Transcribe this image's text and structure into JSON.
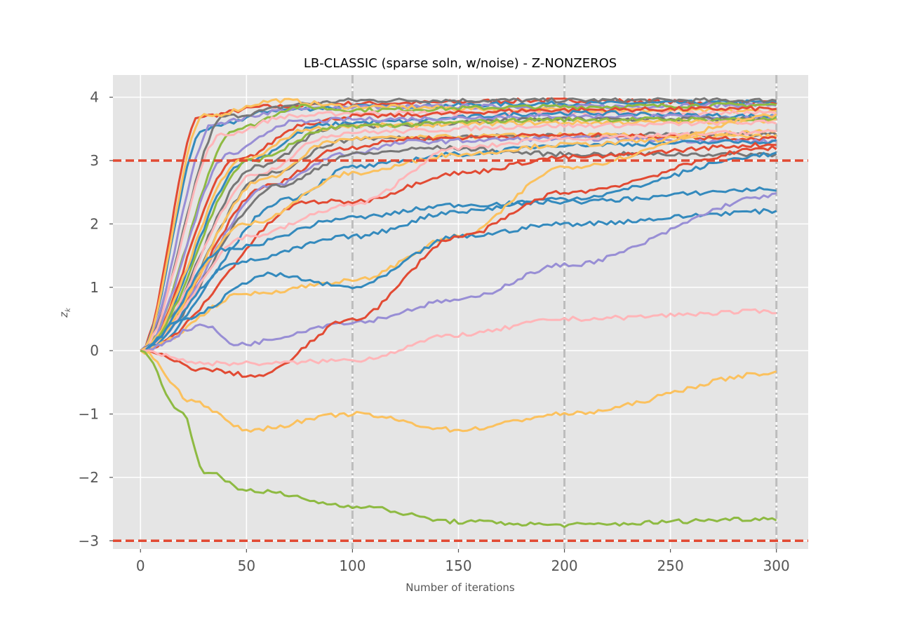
{
  "chart_data": {
    "type": "line",
    "title": "LB-CLASSIC (sparse soln, w/noise) - Z-NONZEROS",
    "xlabel": "Number of iterations",
    "ylabel": "z_k",
    "xlim": [
      -13,
      315
    ],
    "ylim": [
      -3.13,
      4.35
    ],
    "xticks": [
      0,
      50,
      100,
      150,
      200,
      250,
      300
    ],
    "xtick_labels": [
      "0",
      "50",
      "100",
      "150",
      "200",
      "250",
      "300"
    ],
    "yticks": [
      -3,
      -2,
      -1,
      0,
      1,
      2,
      3,
      4
    ],
    "ytick_labels": [
      "−3",
      "−2",
      "−1",
      "0",
      "1",
      "2",
      "3",
      "4"
    ],
    "grid": true,
    "threshold_lines": [
      3,
      -3
    ],
    "vertical_markers": [
      100,
      200,
      300
    ],
    "colors": {
      "background": "#e5e5e5",
      "grid": "#ffffff",
      "threshold": "#e24a33",
      "marker": "#bdbdbd",
      "palette": [
        "#e24a33",
        "#348abd",
        "#988ed5",
        "#777777",
        "#fbc15e",
        "#8eba42",
        "#ffb5b8"
      ]
    },
    "series": [
      {
        "color": "#e24a33",
        "x": [
          0,
          28,
          60,
          100,
          200,
          300
        ],
        "y": [
          0,
          3.7,
          3.85,
          3.9,
          3.95,
          3.9
        ]
      },
      {
        "color": "#348abd",
        "x": [
          0,
          30,
          65,
          100,
          200,
          300
        ],
        "y": [
          0,
          3.5,
          3.8,
          3.85,
          3.9,
          3.92
        ]
      },
      {
        "color": "#988ed5",
        "x": [
          0,
          35,
          70,
          100,
          200,
          300
        ],
        "y": [
          0,
          3.6,
          3.8,
          3.85,
          3.85,
          3.88
        ]
      },
      {
        "color": "#777777",
        "x": [
          0,
          40,
          80,
          100,
          200,
          300
        ],
        "y": [
          0,
          3.7,
          3.9,
          3.95,
          3.95,
          3.95
        ]
      },
      {
        "color": "#fbc15e",
        "x": [
          0,
          30,
          65,
          100,
          200,
          300
        ],
        "y": [
          0,
          3.7,
          3.95,
          3.85,
          3.8,
          3.78
        ]
      },
      {
        "color": "#8eba42",
        "x": [
          0,
          45,
          75,
          100,
          200,
          300
        ],
        "y": [
          0,
          3.5,
          3.85,
          3.8,
          3.85,
          3.88
        ]
      },
      {
        "color": "#ffb5b8",
        "x": [
          0,
          38,
          70,
          100,
          200,
          300
        ],
        "y": [
          0,
          3.4,
          3.7,
          3.75,
          3.75,
          3.75
        ]
      },
      {
        "color": "#e24a33",
        "x": [
          0,
          45,
          80,
          100,
          200,
          300
        ],
        "y": [
          0,
          3.0,
          3.6,
          3.7,
          3.8,
          3.82
        ]
      },
      {
        "color": "#348abd",
        "x": [
          0,
          50,
          85,
          100,
          200,
          300
        ],
        "y": [
          0,
          3.0,
          3.55,
          3.6,
          3.75,
          3.7
        ]
      },
      {
        "color": "#988ed5",
        "x": [
          0,
          42,
          70,
          100,
          200,
          300
        ],
        "y": [
          0,
          3.1,
          3.6,
          3.65,
          3.7,
          3.68
        ]
      },
      {
        "color": "#777777",
        "x": [
          0,
          55,
          90,
          100,
          200,
          300
        ],
        "y": [
          0,
          2.9,
          3.5,
          3.55,
          3.65,
          3.66
        ]
      },
      {
        "color": "#fbc15e",
        "x": [
          0,
          48,
          80,
          100,
          200,
          300
        ],
        "y": [
          0,
          3.0,
          3.5,
          3.55,
          3.6,
          3.62
        ]
      },
      {
        "color": "#8eba42",
        "x": [
          0,
          52,
          90,
          100,
          200,
          300
        ],
        "y": [
          0,
          3.0,
          3.5,
          3.55,
          3.65,
          3.65
        ]
      },
      {
        "color": "#ffb5b8",
        "x": [
          0,
          55,
          90,
          100,
          200,
          300
        ],
        "y": [
          0,
          2.8,
          3.4,
          3.45,
          3.55,
          3.6
        ]
      },
      {
        "color": "#777777",
        "x": [
          0,
          60,
          95,
          100,
          200,
          300
        ],
        "y": [
          0,
          2.8,
          3.3,
          3.35,
          3.4,
          3.42
        ]
      },
      {
        "color": "#fbc15e",
        "x": [
          0,
          58,
          90,
          100,
          200,
          300
        ],
        "y": [
          0,
          2.7,
          3.3,
          3.35,
          3.4,
          3.38
        ]
      },
      {
        "color": "#e24a33",
        "x": [
          0,
          60,
          95,
          130,
          200,
          300
        ],
        "y": [
          0,
          2.6,
          3.2,
          3.35,
          3.4,
          3.35
        ]
      },
      {
        "color": "#988ed5",
        "x": [
          0,
          62,
          95,
          130,
          200,
          300
        ],
        "y": [
          0,
          2.6,
          3.1,
          3.3,
          3.35,
          3.3
        ]
      },
      {
        "color": "#777777",
        "x": [
          0,
          65,
          100,
          140,
          200,
          300
        ],
        "y": [
          0,
          2.6,
          3.1,
          3.2,
          3.1,
          3.1
        ]
      },
      {
        "color": "#348abd",
        "x": [
          0,
          70,
          100,
          150,
          200,
          300
        ],
        "y": [
          0,
          2.4,
          2.9,
          3.1,
          3.25,
          3.3
        ]
      },
      {
        "color": "#e24a33",
        "x": [
          0,
          80,
          100,
          150,
          200,
          300
        ],
        "y": [
          0,
          2.35,
          2.35,
          2.8,
          3.05,
          3.25
        ]
      },
      {
        "color": "#fbc15e",
        "x": [
          0,
          50,
          100,
          150,
          200,
          300
        ],
        "y": [
          0,
          2.0,
          2.8,
          3.1,
          3.25,
          3.45
        ]
      },
      {
        "color": "#ffb5b8",
        "x": [
          0,
          50,
          100,
          150,
          200,
          300
        ],
        "y": [
          0,
          1.8,
          2.3,
          3.2,
          3.35,
          3.45
        ]
      },
      {
        "color": "#348abd",
        "x": [
          0,
          40,
          100,
          150,
          200,
          300
        ],
        "y": [
          0,
          1.6,
          2.1,
          2.3,
          2.35,
          2.55
        ]
      },
      {
        "color": "#348abd",
        "x": [
          0,
          45,
          100,
          150,
          200,
          300
        ],
        "y": [
          0,
          1.4,
          1.8,
          2.2,
          2.4,
          3.1
        ]
      },
      {
        "color": "#fbc15e",
        "x": [
          0,
          50,
          100,
          150,
          200,
          300
        ],
        "y": [
          0,
          0.9,
          1.1,
          1.8,
          2.9,
          3.7
        ]
      },
      {
        "color": "#348abd",
        "x": [
          0,
          20,
          60,
          100,
          150,
          200,
          300
        ],
        "y": [
          0,
          0.5,
          1.2,
          1.0,
          1.8,
          2.0,
          2.2
        ]
      },
      {
        "color": "#988ed5",
        "x": [
          0,
          30,
          45,
          100,
          150,
          200,
          300
        ],
        "y": [
          0,
          0.4,
          0.1,
          0.45,
          0.8,
          1.35,
          2.45
        ]
      },
      {
        "color": "#e24a33",
        "x": [
          0,
          30,
          55,
          100,
          150,
          200,
          300
        ],
        "y": [
          0,
          -0.3,
          -0.4,
          0.5,
          1.8,
          2.5,
          3.2
        ]
      },
      {
        "color": "#ffb5b8",
        "x": [
          0,
          30,
          60,
          100,
          150,
          200,
          300
        ],
        "y": [
          0,
          -0.2,
          -0.2,
          -0.15,
          0.25,
          0.5,
          0.62
        ]
      },
      {
        "color": "#fbc15e",
        "x": [
          0,
          25,
          50,
          100,
          150,
          200,
          300
        ],
        "y": [
          0,
          -0.8,
          -1.25,
          -1.0,
          -1.25,
          -1.0,
          -0.35
        ]
      },
      {
        "color": "#8eba42",
        "x": [
          0,
          20,
          30,
          50,
          100,
          150,
          200,
          300
        ],
        "y": [
          0,
          -1.0,
          -1.9,
          -2.2,
          -2.45,
          -2.7,
          -2.75,
          -2.65
        ]
      }
    ]
  }
}
